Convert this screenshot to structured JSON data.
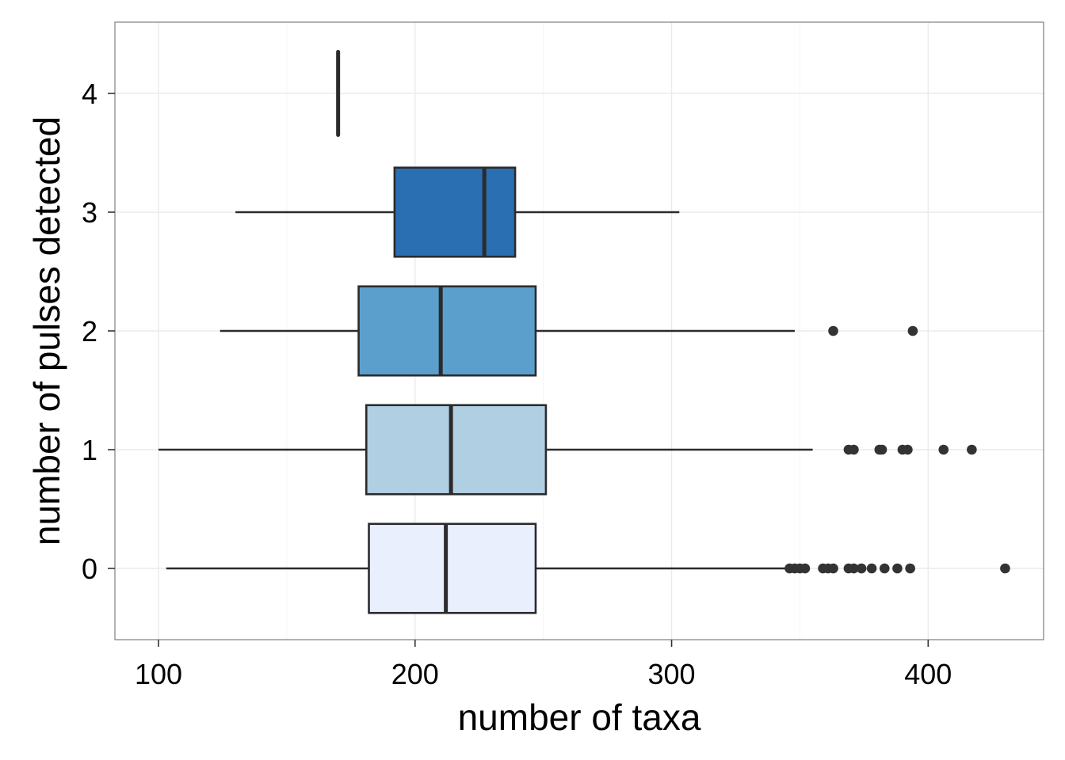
{
  "chart_data": {
    "type": "boxplot",
    "orientation": "horizontal",
    "xlabel": "number of taxa",
    "ylabel": "number of pulses detected",
    "xlim": [
      83,
      445
    ],
    "ylim": [
      -0.6,
      4.6
    ],
    "xticks": [
      100,
      200,
      300,
      400
    ],
    "yticks": [
      0,
      1,
      2,
      3,
      4
    ],
    "grid": true,
    "legend": "none",
    "colors": {
      "panel_bg": "#ffffff",
      "grid_major": "#ebebeb",
      "grid_minor": "#f5f5f5",
      "panel_border": "#7f7f7f",
      "stroke": "#2b2b2b",
      "outlier": "#333333"
    },
    "categories": [
      "0",
      "1",
      "2",
      "3",
      "4"
    ],
    "boxes": [
      {
        "category": "0",
        "fill": "#e9effc",
        "whisker_low": 103,
        "q1": 182,
        "median": 212,
        "q3": 247,
        "whisker_high": 346,
        "outliers": [
          346,
          348,
          350,
          352,
          359,
          361,
          363,
          369,
          371,
          374,
          378,
          383,
          388,
          393,
          430
        ]
      },
      {
        "category": "1",
        "fill": "#b1cfe3",
        "whisker_low": 100,
        "q1": 181,
        "median": 214,
        "q3": 251,
        "whisker_high": 355,
        "outliers": [
          369,
          371,
          381,
          382,
          390,
          392,
          406,
          417
        ]
      },
      {
        "category": "2",
        "fill": "#5ba0cc",
        "whisker_low": 124,
        "q1": 178,
        "median": 210,
        "q3": 247,
        "whisker_high": 348,
        "outliers": [
          363,
          394
        ]
      },
      {
        "category": "3",
        "fill": "#2a6fb2",
        "whisker_low": 130,
        "q1": 192,
        "median": 227,
        "q3": 239,
        "whisker_high": 303,
        "outliers": []
      },
      {
        "category": "4",
        "fill": "#08519c",
        "whisker_low": 170,
        "q1": 170,
        "median": 170,
        "q3": 170,
        "whisker_high": 170,
        "outliers": [],
        "collapsed_range": [
          3.65,
          4.35
        ]
      }
    ]
  }
}
